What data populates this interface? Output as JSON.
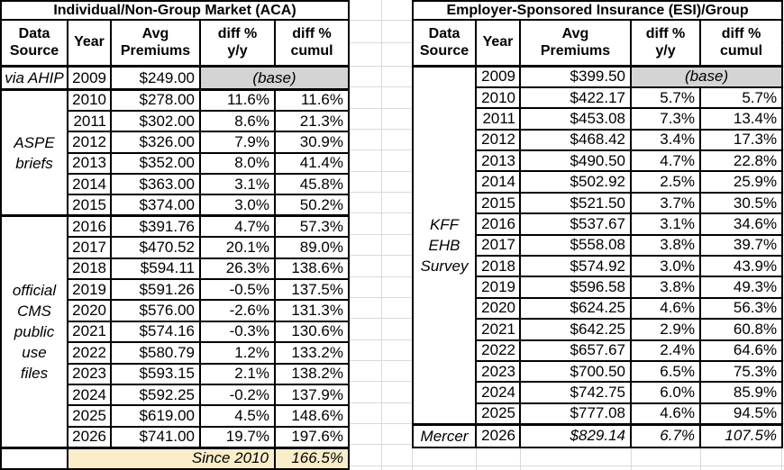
{
  "colors": {
    "border": "#000000",
    "base_bg": "#d4d4d4",
    "summary_bg": "#faeec9",
    "gridline": "#d9d9d9"
  },
  "tables": [
    {
      "name": "aca-table",
      "title": "Individual/Non-Group Market (ACA)",
      "headers": [
        "Data\nSource",
        "Year",
        "Avg\nPremiums",
        "diff %\ny/y",
        "diff %\ncumul"
      ],
      "source_groups": [
        {
          "label": "via AHIP",
          "rows": 1
        },
        {
          "label": "ASPE\nbriefs",
          "rows": 6
        },
        {
          "label": "official\nCMS\npublic\nuse\nfiles",
          "rows": 11
        }
      ],
      "rows": [
        {
          "year": "2009",
          "premium": "$249.00",
          "base": "(base)"
        },
        {
          "year": "2010",
          "premium": "$278.00",
          "yy": "11.6%",
          "cumul": "11.6%"
        },
        {
          "year": "2011",
          "premium": "$302.00",
          "yy": "8.6%",
          "cumul": "21.3%"
        },
        {
          "year": "2012",
          "premium": "$326.00",
          "yy": "7.9%",
          "cumul": "30.9%"
        },
        {
          "year": "2013",
          "premium": "$352.00",
          "yy": "8.0%",
          "cumul": "41.4%"
        },
        {
          "year": "2014",
          "premium": "$363.00",
          "yy": "3.1%",
          "cumul": "45.8%"
        },
        {
          "year": "2015",
          "premium": "$374.00",
          "yy": "3.0%",
          "cumul": "50.2%"
        },
        {
          "year": "2016",
          "premium": "$391.76",
          "yy": "4.7%",
          "cumul": "57.3%"
        },
        {
          "year": "2017",
          "premium": "$470.52",
          "yy": "20.1%",
          "cumul": "89.0%"
        },
        {
          "year": "2018",
          "premium": "$594.11",
          "yy": "26.3%",
          "cumul": "138.6%"
        },
        {
          "year": "2019",
          "premium": "$591.26",
          "yy": "-0.5%",
          "cumul": "137.5%"
        },
        {
          "year": "2020",
          "premium": "$576.00",
          "yy": "-2.6%",
          "cumul": "131.3%"
        },
        {
          "year": "2021",
          "premium": "$574.16",
          "yy": "-0.3%",
          "cumul": "130.6%"
        },
        {
          "year": "2022",
          "premium": "$580.79",
          "yy": "1.2%",
          "cumul": "133.2%"
        },
        {
          "year": "2023",
          "premium": "$593.15",
          "yy": "2.1%",
          "cumul": "138.2%"
        },
        {
          "year": "2024",
          "premium": "$592.25",
          "yy": "-0.2%",
          "cumul": "137.9%"
        },
        {
          "year": "2025",
          "premium": "$619.00",
          "yy": "4.5%",
          "cumul": "148.6%"
        },
        {
          "year": "2026",
          "premium": "$741.00",
          "yy": "19.7%",
          "cumul": "197.6%"
        }
      ],
      "summary": {
        "label": "Since 2010",
        "value": "166.5%"
      }
    },
    {
      "name": "esi-table",
      "title": "Employer-Sponsored Insurance (ESI)/Group",
      "headers": [
        "Data\nSource",
        "Year",
        "Avg\nPremiums",
        "diff %\ny/y",
        "diff %\ncumul"
      ],
      "source_groups": [
        {
          "label": "KFF\nEHB\nSurvey",
          "rows": 17
        },
        {
          "label": "Mercer",
          "rows": 1,
          "italic_values": true
        }
      ],
      "rows": [
        {
          "year": "2009",
          "premium": "$399.50",
          "base": "(base)"
        },
        {
          "year": "2010",
          "premium": "$422.17",
          "yy": "5.7%",
          "cumul": "5.7%"
        },
        {
          "year": "2011",
          "premium": "$453.08",
          "yy": "7.3%",
          "cumul": "13.4%"
        },
        {
          "year": "2012",
          "premium": "$468.42",
          "yy": "3.4%",
          "cumul": "17.3%"
        },
        {
          "year": "2013",
          "premium": "$490.50",
          "yy": "4.7%",
          "cumul": "22.8%"
        },
        {
          "year": "2014",
          "premium": "$502.92",
          "yy": "2.5%",
          "cumul": "25.9%"
        },
        {
          "year": "2015",
          "premium": "$521.50",
          "yy": "3.7%",
          "cumul": "30.5%"
        },
        {
          "year": "2016",
          "premium": "$537.67",
          "yy": "3.1%",
          "cumul": "34.6%"
        },
        {
          "year": "2017",
          "premium": "$558.08",
          "yy": "3.8%",
          "cumul": "39.7%"
        },
        {
          "year": "2018",
          "premium": "$574.92",
          "yy": "3.0%",
          "cumul": "43.9%"
        },
        {
          "year": "2019",
          "premium": "$596.58",
          "yy": "3.8%",
          "cumul": "49.3%"
        },
        {
          "year": "2020",
          "premium": "$624.25",
          "yy": "4.6%",
          "cumul": "56.3%"
        },
        {
          "year": "2021",
          "premium": "$642.25",
          "yy": "2.9%",
          "cumul": "60.8%"
        },
        {
          "year": "2022",
          "premium": "$657.67",
          "yy": "2.4%",
          "cumul": "64.6%"
        },
        {
          "year": "2023",
          "premium": "$700.50",
          "yy": "6.5%",
          "cumul": "75.3%"
        },
        {
          "year": "2024",
          "premium": "$742.75",
          "yy": "6.0%",
          "cumul": "85.9%"
        },
        {
          "year": "2025",
          "premium": "$777.08",
          "yy": "4.6%",
          "cumul": "94.5%"
        },
        {
          "year": "2026",
          "premium": "$829.14",
          "yy": "6.7%",
          "cumul": "107.5%",
          "italic": true
        }
      ]
    }
  ]
}
